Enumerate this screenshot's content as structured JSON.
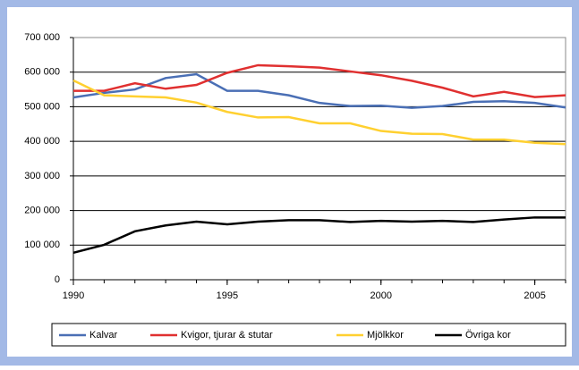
{
  "chart_data": {
    "type": "line",
    "x": [
      1990,
      1991,
      1992,
      1993,
      1994,
      1995,
      1996,
      1997,
      1998,
      1999,
      2000,
      2001,
      2002,
      2003,
      2004,
      2005,
      2006
    ],
    "series": [
      {
        "name": "Kalvar",
        "color": "#4a6fb5",
        "values": [
          527000,
          540000,
          550000,
          583000,
          594000,
          546000,
          546000,
          533000,
          511000,
          502000,
          503000,
          497000,
          502000,
          514000,
          516000,
          511000,
          498000
        ]
      },
      {
        "name": "Kvigor, tjurar & stutar",
        "color": "#e03030",
        "values": [
          546000,
          546000,
          568000,
          552000,
          563000,
          598000,
          620000,
          617000,
          613000,
          602000,
          591000,
          575000,
          555000,
          530000,
          543000,
          528000,
          533000
        ]
      },
      {
        "name": "Mjölkkor",
        "color": "#ffd030",
        "values": [
          576000,
          533000,
          530000,
          527000,
          512000,
          485000,
          469000,
          470000,
          452000,
          452000,
          430000,
          422000,
          421000,
          405000,
          405000,
          396000,
          392000
        ]
      },
      {
        "name": "Övriga kor",
        "color": "#000000",
        "values": [
          78000,
          101000,
          140000,
          157000,
          168000,
          160000,
          168000,
          172000,
          172000,
          167000,
          170000,
          168000,
          170000,
          167000,
          174000,
          180000,
          180000
        ]
      }
    ],
    "xlim": [
      1990,
      2006
    ],
    "xticks": [
      1990,
      1995,
      2000,
      2005
    ],
    "ylim": [
      0,
      700000
    ],
    "yticks": [
      0,
      {
        "value": 100000,
        "label": "100 000"
      },
      {
        "value": 200000,
        "label": "200 000"
      },
      {
        "value": 300000,
        "label": "300 000"
      },
      {
        "value": 400000,
        "label": "400 000"
      },
      {
        "value": 500000,
        "label": "500 000"
      },
      {
        "value": 600000,
        "label": "600 000"
      },
      {
        "value": 700000,
        "label": "700 000"
      }
    ],
    "grid": true
  }
}
